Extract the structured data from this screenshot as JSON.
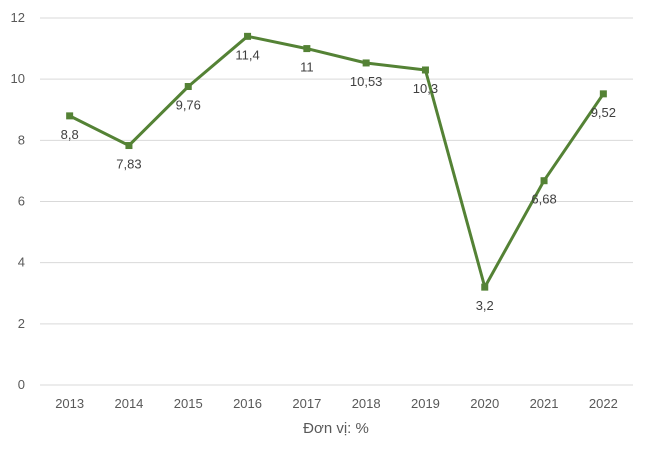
{
  "chart_data": {
    "type": "line",
    "title": "",
    "xlabel": "Đơn vị: %",
    "ylabel": "",
    "categories": [
      "2013",
      "2014",
      "2015",
      "2016",
      "2017",
      "2018",
      "2019",
      "2020",
      "2021",
      "2022"
    ],
    "series": [
      {
        "values": [
          8.8,
          7.83,
          9.76,
          11.4,
          11,
          10.53,
          10.3,
          3.2,
          6.68,
          9.52
        ],
        "labels": [
          "8,8",
          "7,83",
          "9,76",
          "11,4",
          "11",
          "10,53",
          "10,3",
          "3,2",
          "6,68",
          "9,52"
        ],
        "color": "#548235"
      }
    ],
    "ylim": [
      0,
      12
    ],
    "yticks": [
      0,
      2,
      4,
      6,
      8,
      10,
      12
    ],
    "grid": true,
    "legend": "none"
  }
}
